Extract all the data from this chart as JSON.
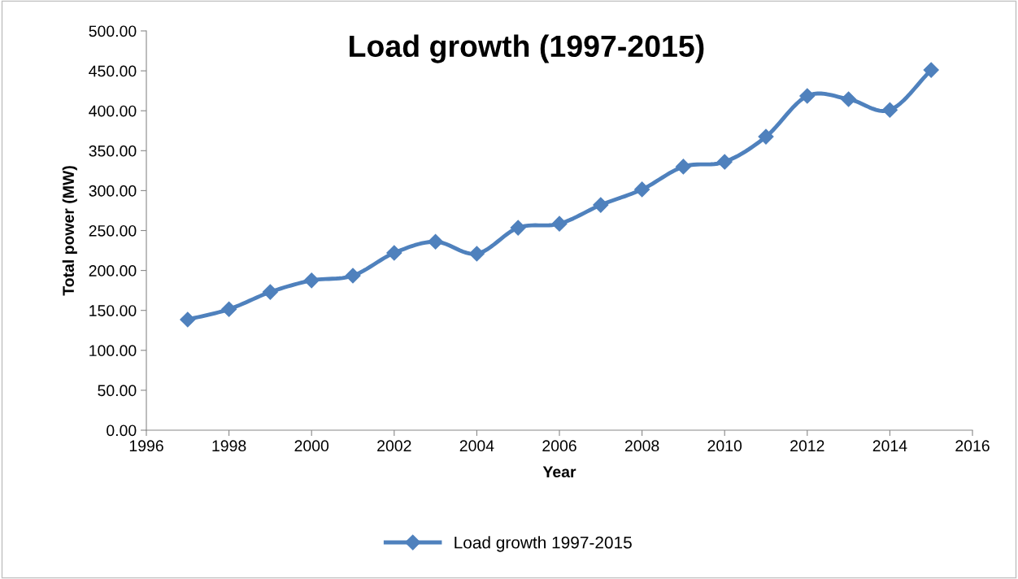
{
  "chart_data": {
    "type": "line",
    "title": "Load growth (1997-2015)",
    "xlabel": "Year",
    "ylabel": "Total power (MW)",
    "x": [
      1997,
      1998,
      1999,
      2000,
      2001,
      2002,
      2003,
      2004,
      2005,
      2006,
      2007,
      2008,
      2009,
      2010,
      2011,
      2012,
      2013,
      2014,
      2015
    ],
    "series": [
      {
        "name": "Load growth 1997-2015",
        "color": "#4f81bd",
        "values": [
          138.5,
          151.5,
          173,
          187.5,
          193.5,
          222,
          236,
          221,
          253.5,
          258.5,
          282,
          301.5,
          330,
          336,
          367.5,
          418.5,
          414.5,
          401,
          451
        ]
      }
    ],
    "xlim": [
      1996,
      2016
    ],
    "xticks": [
      1996,
      1998,
      2000,
      2002,
      2004,
      2006,
      2008,
      2010,
      2012,
      2014,
      2016
    ],
    "ylim": [
      0,
      500
    ],
    "yticks": [
      {
        "value": 0,
        "label": "0.00"
      },
      {
        "value": 50,
        "label": "50.00"
      },
      {
        "value": 100,
        "label": "100.00"
      },
      {
        "value": 150,
        "label": "150.00"
      },
      {
        "value": 200,
        "label": "200.00"
      },
      {
        "value": 250,
        "label": "250.00"
      },
      {
        "value": 300,
        "label": "300.00"
      },
      {
        "value": 350,
        "label": "350.00"
      },
      {
        "value": 400,
        "label": "400.00"
      },
      {
        "value": 450,
        "label": "450.00"
      },
      {
        "value": 500,
        "label": "500.00"
      }
    ],
    "grid": false,
    "legend": "bottom",
    "marker": "diamond",
    "line_style": "solid"
  }
}
